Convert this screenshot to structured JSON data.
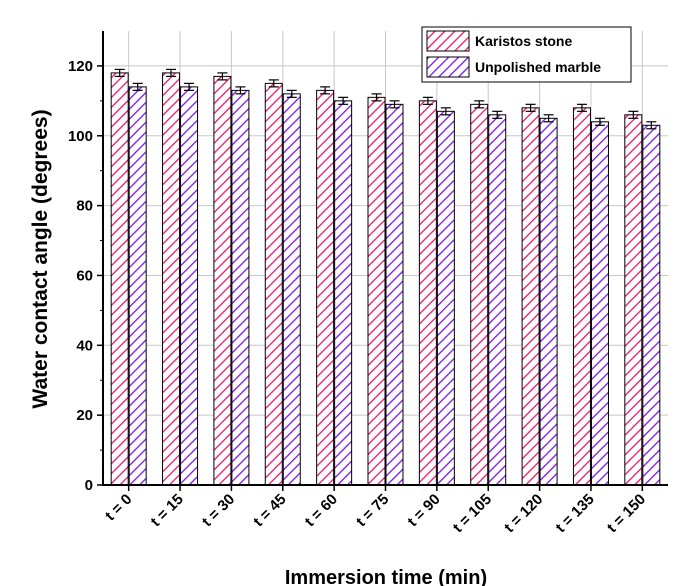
{
  "chart_data": {
    "type": "bar",
    "title": "",
    "xlabel": "Immersion time (min)",
    "ylabel": "Water contact angle (degrees)",
    "categories": [
      "t = 0",
      "t = 15",
      "t = 30",
      "t = 45",
      "t = 60",
      "t = 75",
      "t = 90",
      "t = 105",
      "t = 120",
      "t = 135",
      "t = 150"
    ],
    "series": [
      {
        "name": "Karistos stone",
        "color": "#e8176f",
        "values": [
          118,
          118,
          117,
          115,
          113,
          111,
          110,
          109,
          108,
          108,
          106
        ],
        "errors": [
          1,
          1,
          1,
          1,
          1,
          1,
          1,
          1,
          1,
          1,
          1
        ]
      },
      {
        "name": "Unpolished marble",
        "color": "#7b16e8",
        "values": [
          114,
          114,
          113,
          112,
          110,
          109,
          107,
          106,
          105,
          104,
          103
        ],
        "errors": [
          1,
          1,
          1,
          1,
          1,
          1,
          1,
          1,
          1,
          1,
          1
        ]
      }
    ],
    "ylim": [
      0,
      130
    ],
    "yticks": [
      0,
      20,
      40,
      60,
      80,
      100,
      120
    ],
    "grid": true,
    "legend_position": "top-right"
  }
}
